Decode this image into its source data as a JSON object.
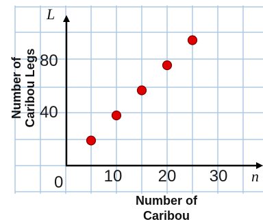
{
  "chart_data": {
    "type": "scatter",
    "x_axis": {
      "variable": "n",
      "title": [
        "Number of",
        "Caribou"
      ],
      "tick_labels": [
        "0",
        "10",
        "20",
        "30"
      ],
      "range": [
        0,
        40
      ]
    },
    "y_axis": {
      "variable": "L",
      "title": [
        "Number of",
        "Caribou Legs"
      ],
      "tick_labels": [
        "40",
        "80"
      ],
      "range": [
        0,
        110
      ]
    },
    "grid": true,
    "points": [
      {
        "x": 5,
        "y": 20
      },
      {
        "x": 10,
        "y": 40
      },
      {
        "x": 15,
        "y": 60
      },
      {
        "x": 20,
        "y": 80
      },
      {
        "x": 25,
        "y": 100
      }
    ],
    "colors": {
      "point": "#e00000",
      "grid": "#aec8e6",
      "axis": "#000000"
    }
  }
}
